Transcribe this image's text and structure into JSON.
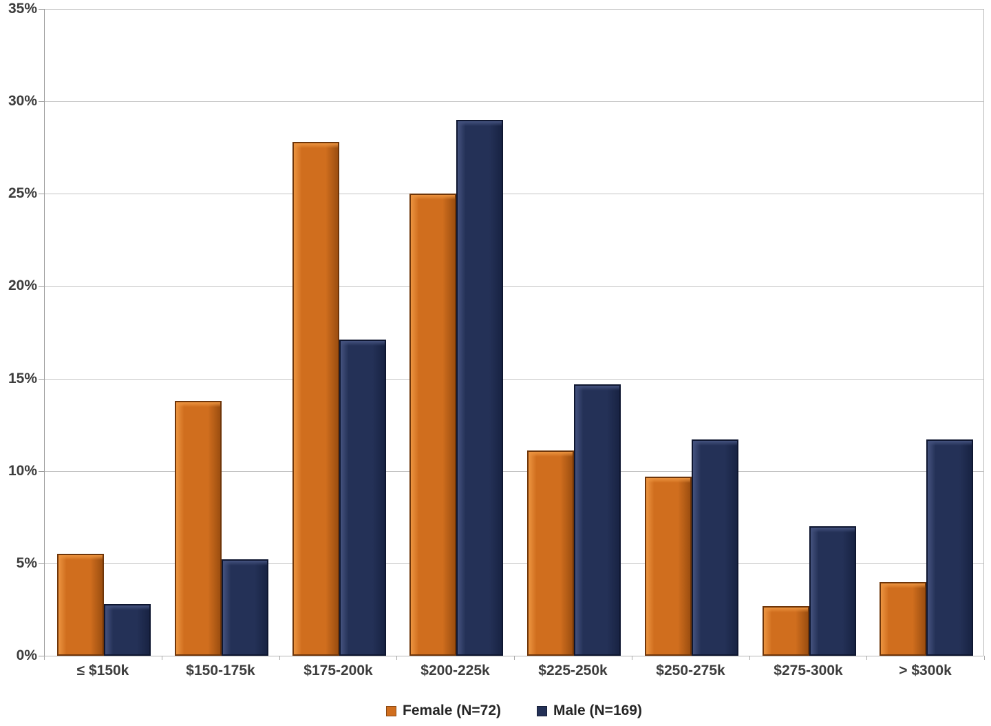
{
  "chart_data": {
    "type": "bar",
    "title": "",
    "xlabel": "",
    "ylabel": "",
    "categories": [
      "≤ $150k",
      "$150-175k",
      "$175-200k",
      "$200-225k",
      "$225-250k",
      "$250-275k",
      "$275-300k",
      "> $300k"
    ],
    "series": [
      {
        "name": "Female (N=72)",
        "color": "#d06e1e",
        "color_light": "#ec9440",
        "color_dark": "#6e3509",
        "color_dark2": "#9c4e10",
        "values": [
          5.5,
          13.8,
          27.8,
          25.0,
          11.1,
          9.7,
          2.7,
          4.0
        ]
      },
      {
        "name": "Male (N=169)",
        "color": "#243157",
        "color_light": "#44527e",
        "color_dark": "#0e1630",
        "color_dark2": "#182343",
        "values": [
          2.8,
          5.2,
          17.1,
          29.0,
          14.7,
          11.7,
          7.0,
          11.7
        ]
      }
    ],
    "ylim": [
      0,
      35
    ],
    "ytick_step": 5,
    "ytick_labels": [
      "0%",
      "5%",
      "10%",
      "15%",
      "20%",
      "25%",
      "30%",
      "35%"
    ],
    "grid": true,
    "legend_position": "bottom"
  },
  "colors": {
    "background": "#ffffff",
    "gridline": "#c3c3c3",
    "axis_line": "#9b9b9b",
    "tick_label": "#3d3d3d",
    "legend_text": "#262626"
  }
}
